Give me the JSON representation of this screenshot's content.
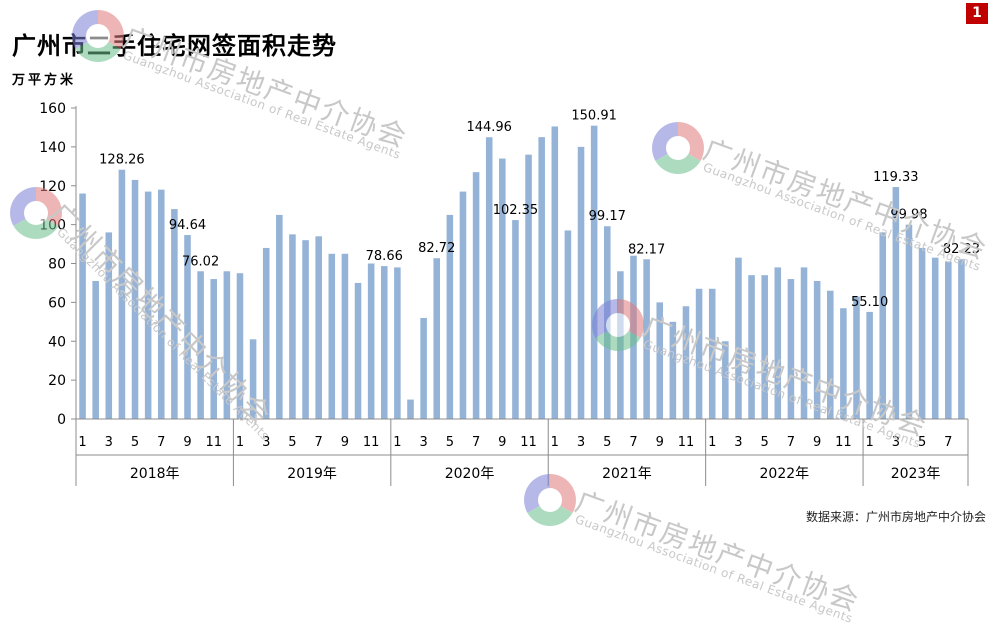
{
  "title": "广州市二手住宅网签面积走势",
  "unit_label": "万平方米",
  "page_badge": "1",
  "source": "数据来源：广州市房地产中介协会",
  "watermark": {
    "cn": "广州市房地产中介协会",
    "en": "Guangzhou Association of Real Estate Agents"
  },
  "colors": {
    "bar": "#95b3d7",
    "bar_edge": "#7f9fc6",
    "axis": "#8c8c8c",
    "text": "#000000",
    "watermark_logo": [
      "#7b7fd6",
      "#e07a7a",
      "#6bbf8c"
    ]
  },
  "chart_data": {
    "type": "bar",
    "title": "广州市二手住宅网签面积走势",
    "ylabel": "万平方米",
    "ylim": [
      0,
      160
    ],
    "yticks": [
      0,
      20,
      40,
      60,
      80,
      100,
      120,
      140,
      160
    ],
    "grid": false,
    "legend": "none",
    "years": [
      {
        "label": "2018年",
        "months": 12
      },
      {
        "label": "2019年",
        "months": 12
      },
      {
        "label": "2020年",
        "months": 12
      },
      {
        "label": "2021年",
        "months": 12
      },
      {
        "label": "2022年",
        "months": 12
      },
      {
        "label": "2023年",
        "months": 8
      }
    ],
    "month_tick_labels": [
      "1",
      "",
      "3",
      "",
      "5",
      "",
      "7",
      "",
      "9",
      "",
      "11",
      ""
    ],
    "values": [
      116,
      71,
      96,
      128.26,
      123,
      117,
      118,
      108,
      94.64,
      76,
      72,
      76,
      75,
      41,
      88,
      105,
      95,
      92,
      94,
      85,
      85,
      70,
      80,
      78.66,
      78,
      10,
      52,
      82.72,
      105,
      117,
      127,
      144.96,
      134,
      102.35,
      136,
      145,
      150.5,
      97,
      140,
      150.91,
      99.17,
      76,
      84,
      82.17,
      60,
      50,
      58,
      67,
      67,
      40,
      83,
      74,
      74,
      78,
      72,
      78,
      71,
      66,
      57,
      63,
      55.1,
      96,
      119.33,
      99.98,
      88,
      83,
      81,
      82.23
    ],
    "data_labels": [
      {
        "index": 3,
        "text": "128.26"
      },
      {
        "index": 8,
        "text": "94.64"
      },
      {
        "index": 9,
        "text": "76.02"
      },
      {
        "index": 23,
        "text": "78.66"
      },
      {
        "index": 27,
        "text": "82.72"
      },
      {
        "index": 31,
        "text": "144.96"
      },
      {
        "index": 33,
        "text": "102.35"
      },
      {
        "index": 39,
        "text": "150.91"
      },
      {
        "index": 40,
        "text": "99.17"
      },
      {
        "index": 43,
        "text": "82.17"
      },
      {
        "index": 60,
        "text": "55.10"
      },
      {
        "index": 62,
        "text": "119.33"
      },
      {
        "index": 63,
        "text": "99.98"
      },
      {
        "index": 67,
        "text": "82.23"
      }
    ]
  }
}
